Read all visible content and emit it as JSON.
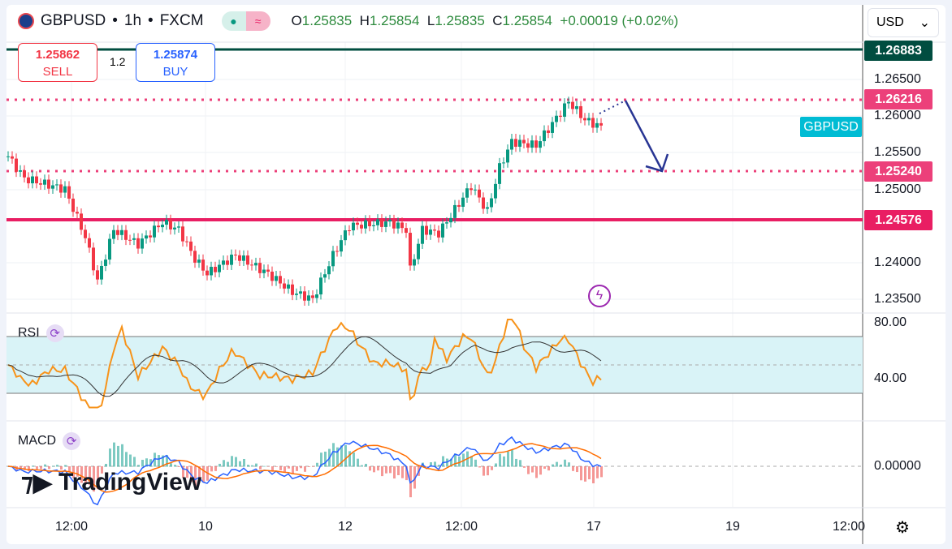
{
  "header": {
    "symbol": "GBPUSD",
    "interval": "1h",
    "exchange": "FXCM",
    "sep": "•",
    "o_label": "O",
    "o": "1.25835",
    "h_label": "H",
    "h": "1.25854",
    "l_label": "L",
    "l": "1.25835",
    "c_label": "C",
    "c": "1.25854",
    "change": "+0.00019 (+0.02%)"
  },
  "trade": {
    "sell_price": "1.25862",
    "sell_label": "SELL",
    "spread": "1.2",
    "buy_price": "1.25874",
    "buy_label": "BUY"
  },
  "currency": "USD",
  "price_tags": {
    "top": "1.26883",
    "r1": "1.26216",
    "r2": "1.25240",
    "support": "1.24576",
    "symbol": "GBPUSD"
  },
  "price_axis": [
    "1.26500",
    "1.26000",
    "1.25500",
    "1.25000",
    "1.24000",
    "1.23500"
  ],
  "rsi": {
    "label": "RSI",
    "axis": [
      "80.00",
      "40.00"
    ]
  },
  "macd": {
    "label": "MACD",
    "axis": [
      "0.00000"
    ]
  },
  "time_axis": [
    "12:00",
    "10",
    "12",
    "12:00",
    "17",
    "19",
    "12:00"
  ],
  "logo": "TradingView",
  "colors": {
    "up": "#089981",
    "down": "#f23645",
    "pink": "#e91e63",
    "dark": "#004d40",
    "rsi": "#f7931a"
  },
  "chart_data": {
    "type": "candlestick",
    "series_keypoints": [
      [
        0,
        1.2545
      ],
      [
        4,
        1.2515
      ],
      [
        14,
        1.25
      ],
      [
        19,
        1.2435
      ],
      [
        22,
        1.2375
      ],
      [
        26,
        1.2445
      ],
      [
        32,
        1.2425
      ],
      [
        38,
        1.2455
      ],
      [
        42,
        1.2445
      ],
      [
        46,
        1.2405
      ],
      [
        49,
        1.2385
      ],
      [
        56,
        1.241
      ],
      [
        64,
        1.2385
      ],
      [
        70,
        1.236
      ],
      [
        75,
        1.235
      ],
      [
        80,
        1.241
      ],
      [
        84,
        1.245
      ],
      [
        94,
        1.2455
      ],
      [
        98,
        1.2445
      ],
      [
        99,
        1.239
      ],
      [
        102,
        1.2445
      ],
      [
        106,
        1.244
      ],
      [
        114,
        1.2505
      ],
      [
        118,
        1.247
      ],
      [
        121,
        1.253
      ],
      [
        124,
        1.2565
      ],
      [
        130,
        1.256
      ],
      [
        134,
        1.259
      ],
      [
        138,
        1.262
      ],
      [
        142,
        1.2595
      ],
      [
        146,
        1.2585
      ]
    ],
    "ylim": [
      1.2335,
      1.2705
    ]
  }
}
